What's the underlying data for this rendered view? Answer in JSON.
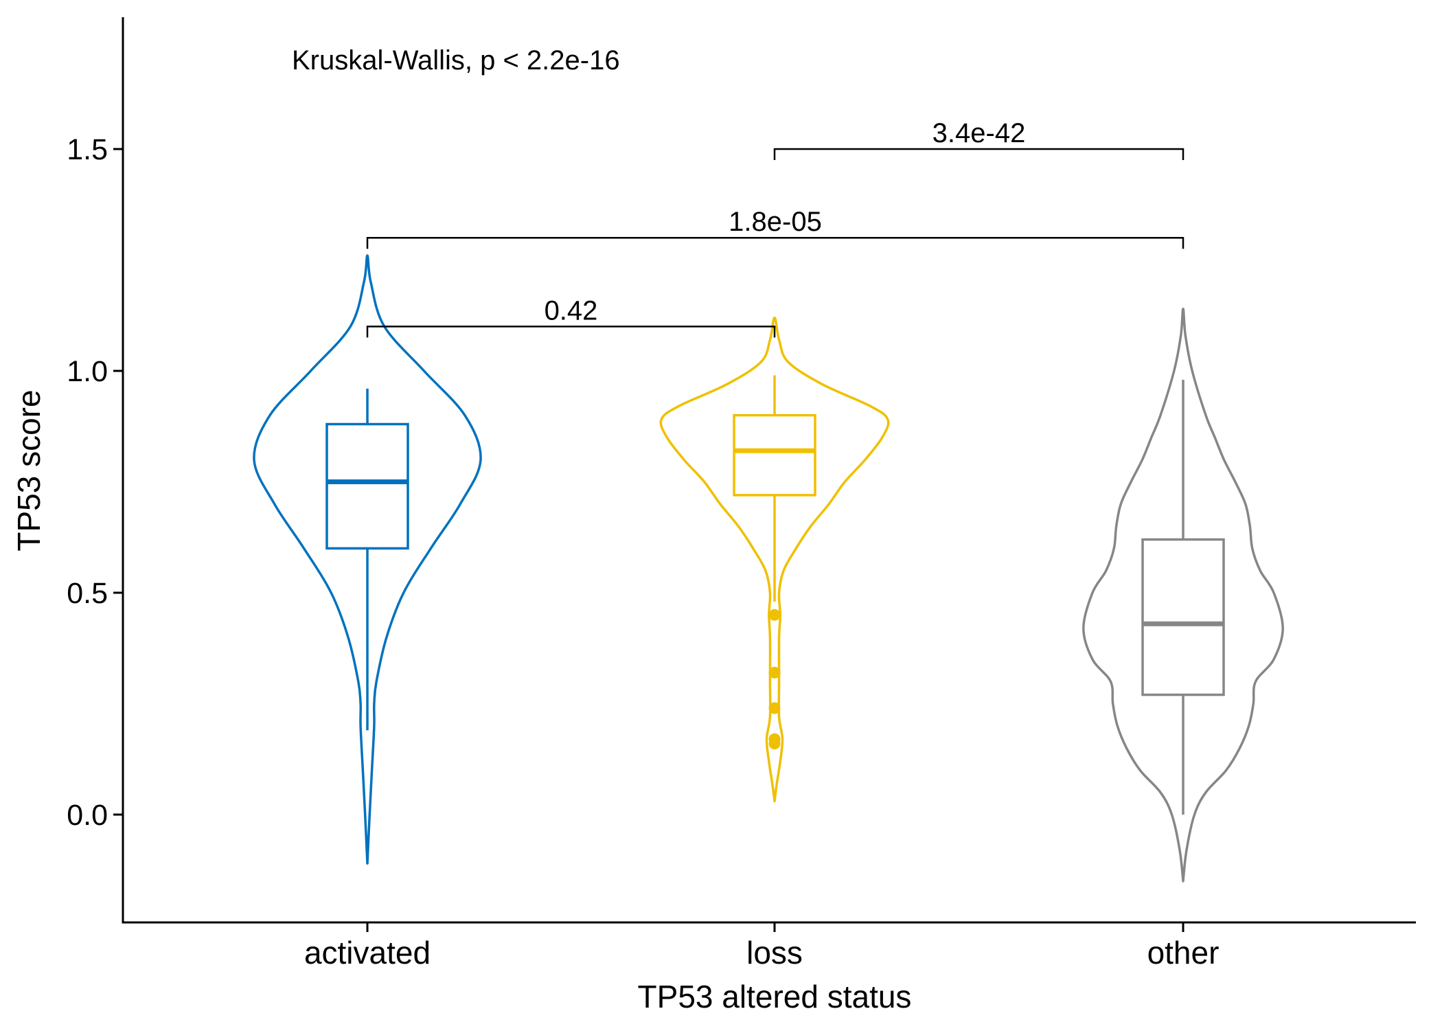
{
  "chart_data": {
    "type": "violin",
    "title": "",
    "xlabel": "TP53 altered status",
    "ylabel": "TP53 score",
    "ylim": [
      -0.24,
      1.8
    ],
    "yticks": [
      0.0,
      0.5,
      1.0,
      1.5
    ],
    "ytick_labels": [
      "0.0",
      "0.5",
      "1.0",
      "1.5"
    ],
    "categories": [
      "activated",
      "loss",
      "other"
    ],
    "legend": "none",
    "grid": false,
    "overall_test": "Kruskal-Wallis, p < 2.2e-16",
    "series": [
      {
        "category": "activated",
        "color": "#0072BD",
        "violin": {
          "min": -0.11,
          "max": 1.26,
          "width_at": [
            [
              -0.11,
              0.0
            ],
            [
              0.0,
              0.02
            ],
            [
              0.1,
              0.04
            ],
            [
              0.2,
              0.06
            ],
            [
              0.25,
              0.06
            ],
            [
              0.3,
              0.08
            ],
            [
              0.4,
              0.17
            ],
            [
              0.5,
              0.32
            ],
            [
              0.6,
              0.56
            ],
            [
              0.7,
              0.82
            ],
            [
              0.8,
              1.0
            ],
            [
              0.9,
              0.86
            ],
            [
              1.0,
              0.5
            ],
            [
              1.1,
              0.15
            ],
            [
              1.2,
              0.03
            ],
            [
              1.26,
              0.0
            ]
          ]
        },
        "box": {
          "whisker_low": 0.19,
          "q1": 0.6,
          "median": 0.75,
          "q3": 0.88,
          "whisker_high": 0.96
        },
        "outliers": []
      },
      {
        "category": "loss",
        "color": "#EFC000",
        "violin": {
          "min": 0.03,
          "max": 1.12,
          "width_at": [
            [
              0.03,
              0.0
            ],
            [
              0.07,
              0.02
            ],
            [
              0.12,
              0.05
            ],
            [
              0.17,
              0.07
            ],
            [
              0.22,
              0.04
            ],
            [
              0.3,
              0.04
            ],
            [
              0.4,
              0.04
            ],
            [
              0.45,
              0.05
            ],
            [
              0.5,
              0.04
            ],
            [
              0.55,
              0.08
            ],
            [
              0.6,
              0.19
            ],
            [
              0.65,
              0.32
            ],
            [
              0.7,
              0.48
            ],
            [
              0.75,
              0.62
            ],
            [
              0.8,
              0.8
            ],
            [
              0.85,
              0.95
            ],
            [
              0.89,
              1.0
            ],
            [
              0.92,
              0.85
            ],
            [
              0.97,
              0.42
            ],
            [
              1.02,
              0.12
            ],
            [
              1.07,
              0.04
            ],
            [
              1.12,
              0.0
            ]
          ]
        },
        "box": {
          "whisker_low": 0.48,
          "q1": 0.72,
          "median": 0.82,
          "q3": 0.9,
          "whisker_high": 0.99
        },
        "outliers": [
          0.45,
          0.32,
          0.24,
          0.17,
          0.16
        ]
      },
      {
        "category": "other",
        "color": "#868686",
        "violin": {
          "min": -0.15,
          "max": 1.14,
          "width_at": [
            [
              -0.15,
              0.0
            ],
            [
              -0.08,
              0.03
            ],
            [
              0.0,
              0.1
            ],
            [
              0.05,
              0.2
            ],
            [
              0.1,
              0.38
            ],
            [
              0.15,
              0.5
            ],
            [
              0.2,
              0.58
            ],
            [
              0.25,
              0.62
            ],
            [
              0.3,
              0.64
            ],
            [
              0.35,
              0.8
            ],
            [
              0.42,
              0.88
            ],
            [
              0.5,
              0.8
            ],
            [
              0.55,
              0.68
            ],
            [
              0.6,
              0.61
            ],
            [
              0.65,
              0.59
            ],
            [
              0.7,
              0.55
            ],
            [
              0.75,
              0.46
            ],
            [
              0.8,
              0.36
            ],
            [
              0.85,
              0.28
            ],
            [
              0.9,
              0.2
            ],
            [
              1.0,
              0.08
            ],
            [
              1.08,
              0.02
            ],
            [
              1.14,
              0.0
            ]
          ]
        },
        "box": {
          "whisker_low": 0.0,
          "q1": 0.27,
          "median": 0.43,
          "q3": 0.62,
          "whisker_high": 0.98
        },
        "outliers": []
      }
    ],
    "comparisons": [
      {
        "from": "activated",
        "to": "loss",
        "y": 1.1,
        "label": "0.42"
      },
      {
        "from": "activated",
        "to": "other",
        "y": 1.3,
        "label": "1.8e-05"
      },
      {
        "from": "loss",
        "to": "other",
        "y": 1.5,
        "label": "3.4e-42"
      }
    ]
  }
}
